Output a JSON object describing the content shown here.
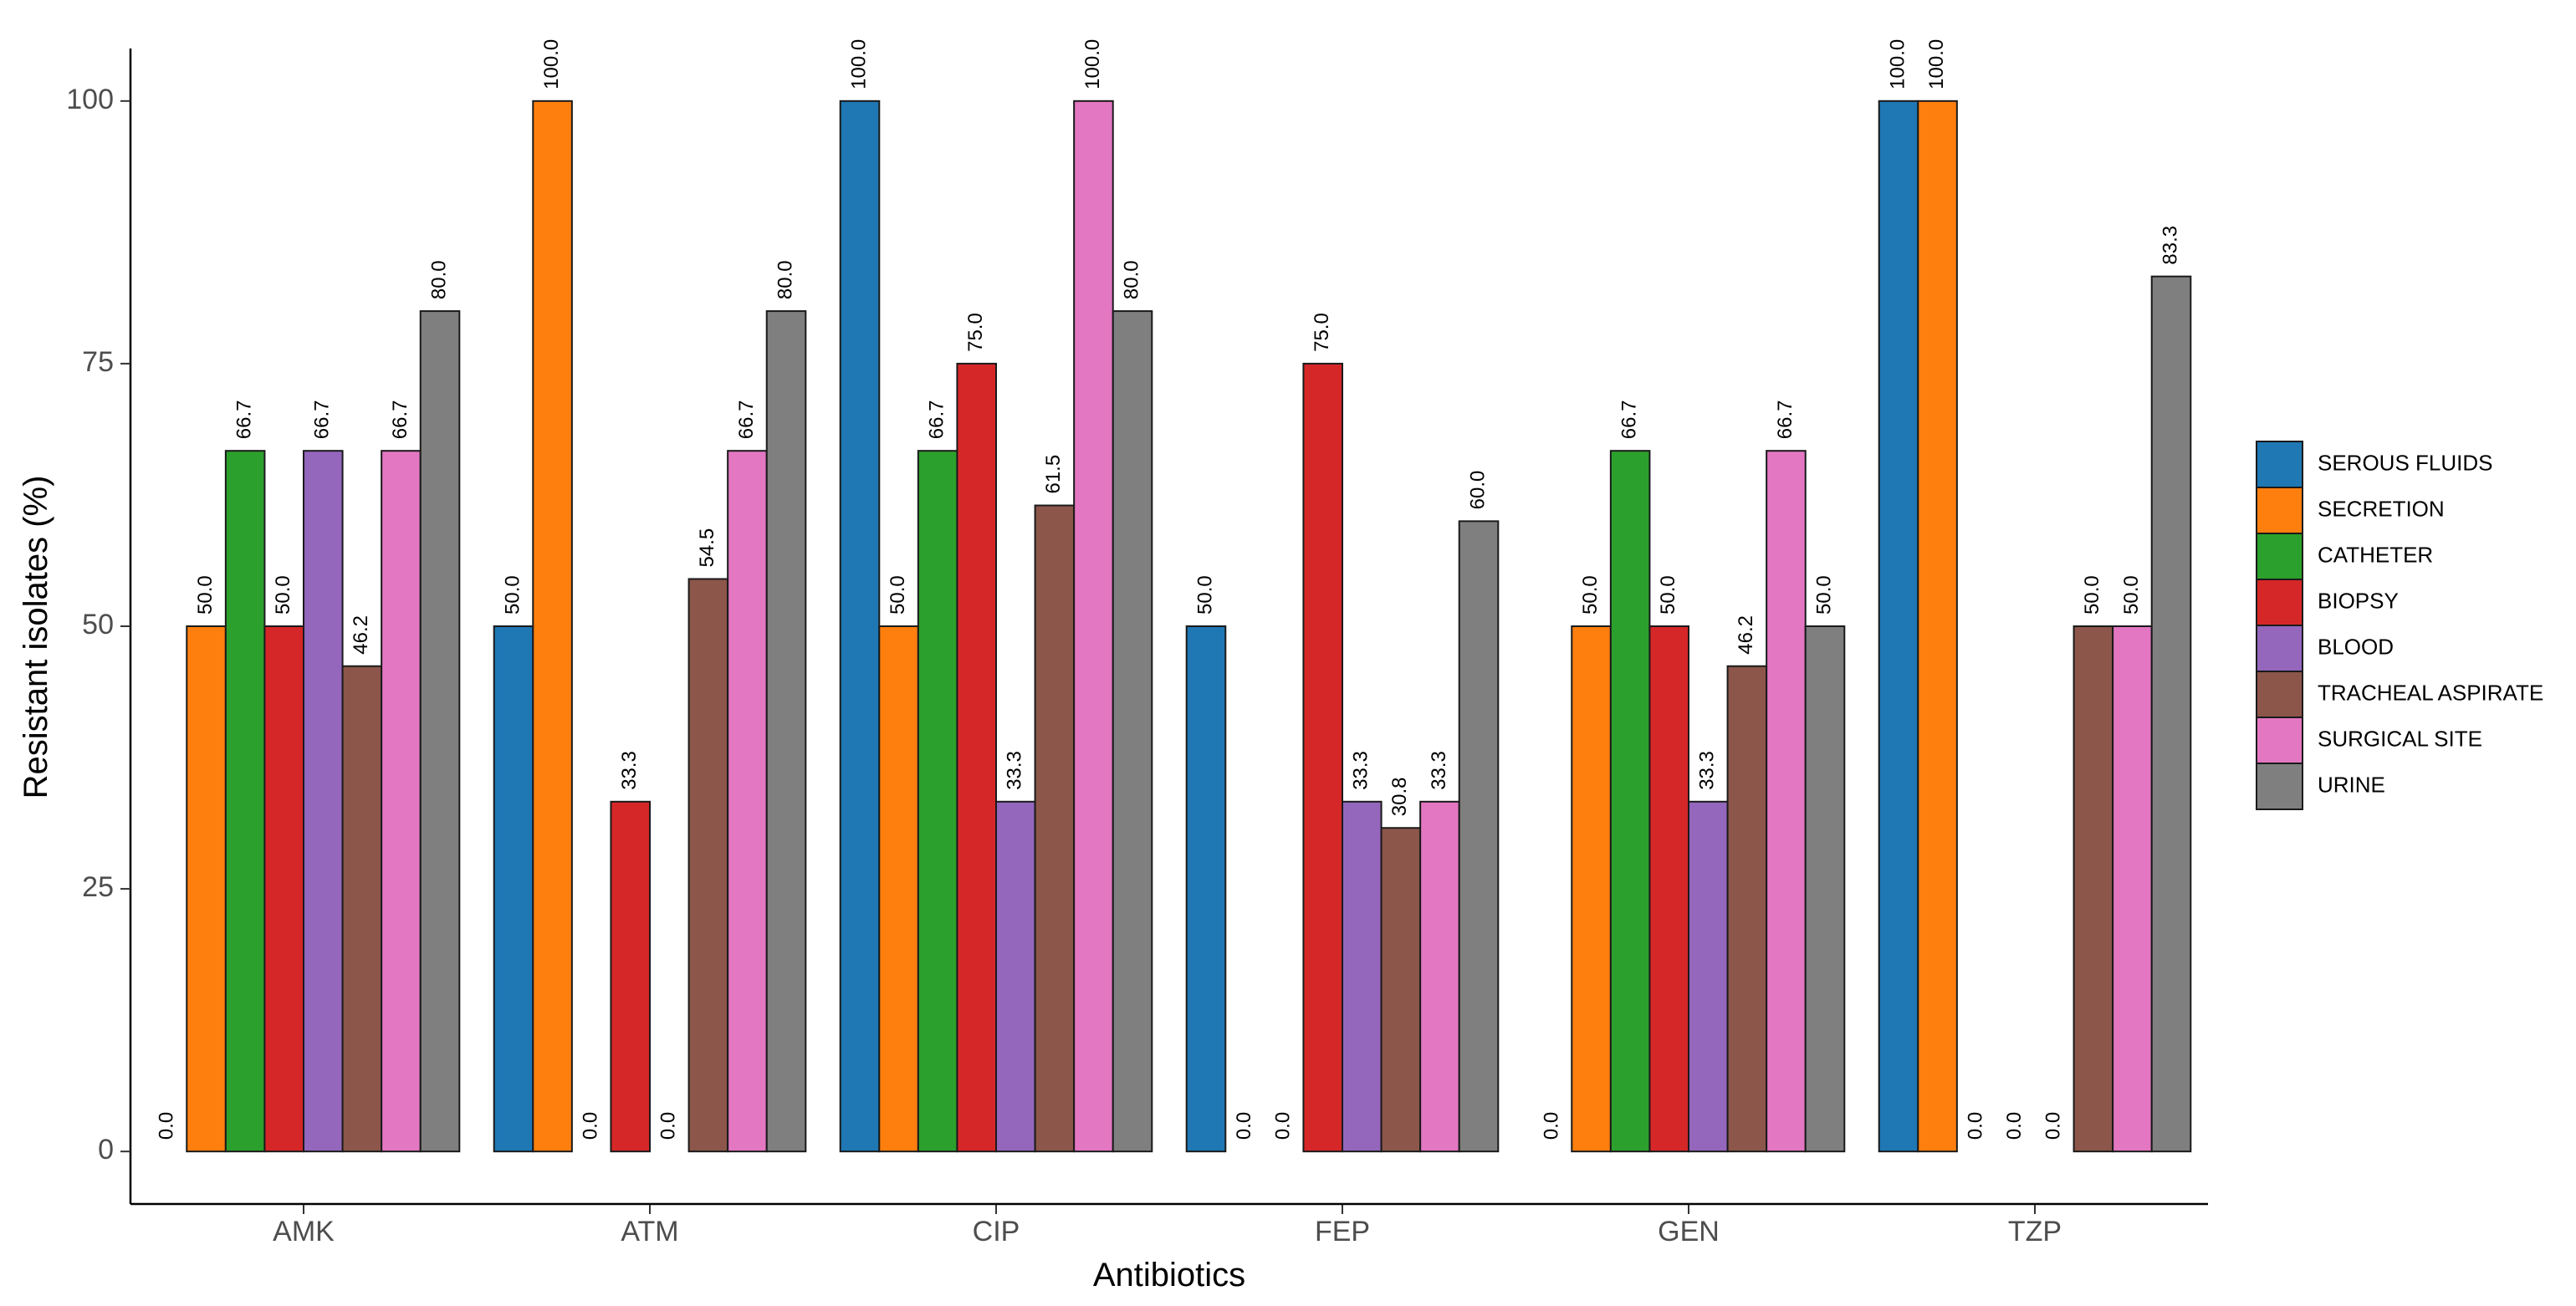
{
  "chart_data": {
    "type": "bar",
    "xlabel": "Antibiotics",
    "ylabel": "Resistant isolates (%)",
    "ylim": [
      -5,
      105
    ],
    "yticks": [
      0,
      25,
      50,
      75,
      100
    ],
    "ytick_labels": [
      "0",
      "25",
      "50",
      "75",
      "100"
    ],
    "categories": [
      "AMK",
      "ATM",
      "CIP",
      "FEP",
      "GEN",
      "TZP"
    ],
    "grid": false,
    "legend_position": "right",
    "series": [
      {
        "name": "SEROUS FLUIDS",
        "color": "#1f77b4",
        "values": [
          0.0,
          50.0,
          100.0,
          50.0,
          0.0,
          100.0
        ]
      },
      {
        "name": "SECRETION",
        "color": "#ff7f0e",
        "values": [
          50.0,
          100.0,
          50.0,
          0.0,
          50.0,
          100.0
        ]
      },
      {
        "name": "CATHETER",
        "color": "#2ca02c",
        "values": [
          66.7,
          0.0,
          66.7,
          0.0,
          66.7,
          0.0
        ]
      },
      {
        "name": "BIOPSY",
        "color": "#d62728",
        "values": [
          50.0,
          33.3,
          75.0,
          75.0,
          50.0,
          0.0
        ]
      },
      {
        "name": "BLOOD",
        "color": "#9467bd",
        "values": [
          66.7,
          0.0,
          33.3,
          33.3,
          33.3,
          0.0
        ]
      },
      {
        "name": "TRACHEAL ASPIRATE",
        "color": "#8c564b",
        "values": [
          46.2,
          54.5,
          61.5,
          30.8,
          46.2,
          50.0
        ]
      },
      {
        "name": "SURGICAL SITE",
        "color": "#e377c2",
        "values": [
          66.7,
          66.7,
          100.0,
          33.3,
          66.7,
          50.0
        ]
      },
      {
        "name": "URINE",
        "color": "#7f7f7f",
        "values": [
          80.0,
          80.0,
          80.0,
          60.0,
          50.0,
          83.3
        ]
      }
    ],
    "bar_labels": [
      [
        "0.0",
        "50.0",
        "66.7",
        "50.0",
        "66.7",
        "46.2",
        "66.7",
        "80.0"
      ],
      [
        "50.0",
        "100.0",
        "0.0",
        "33.3",
        "0.0",
        "54.5",
        "66.7",
        "80.0"
      ],
      [
        "100.0",
        "50.0",
        "66.7",
        "75.0",
        "33.3",
        "61.5",
        "100.0",
        "80.0"
      ],
      [
        "50.0",
        "0.0",
        "0.0",
        "75.0",
        "33.3",
        "30.8",
        "33.3",
        "60.0"
      ],
      [
        "0.0",
        "50.0",
        "66.7",
        "50.0",
        "33.3",
        "46.2",
        "66.7",
        "50.0"
      ],
      [
        "100.0",
        "100.0",
        "0.0",
        "0.0",
        "0.0",
        "50.0",
        "50.0",
        "83.3"
      ]
    ]
  }
}
